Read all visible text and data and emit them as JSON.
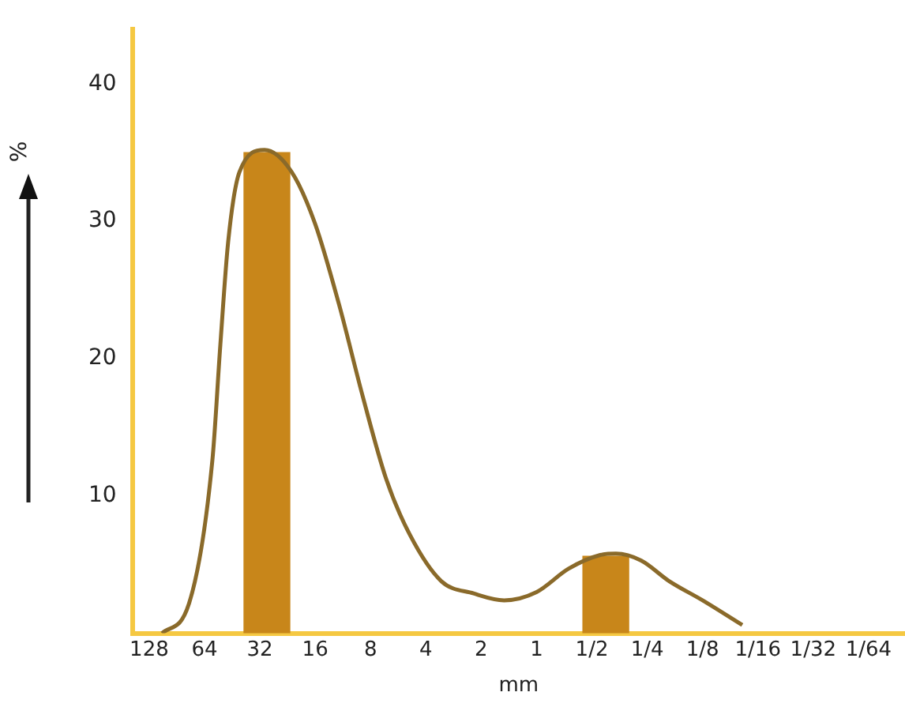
{
  "chart_data": {
    "type": "line",
    "ylabel": "%",
    "xlabel": "mm",
    "log": "x",
    "xlim": [
      158,
      0.0099
    ],
    "xticks": [
      128,
      64,
      32,
      16,
      8,
      4,
      2,
      1,
      {
        "value": 0.5,
        "label": "1/2"
      },
      {
        "value": 0.25,
        "label": "1/4"
      },
      {
        "value": 0.125,
        "label": "1/8"
      },
      {
        "value": 0.0625,
        "label": "1/16"
      },
      {
        "value": 0.03125,
        "label": "1/32"
      },
      {
        "value": 0.015625,
        "label": "1/64"
      }
    ],
    "ylim": [
      0,
      44
    ],
    "yticks": [
      10,
      20,
      30,
      40
    ],
    "grid": false,
    "legend": false,
    "series": [
      {
        "type": "bar",
        "color": "#c8861a",
        "x": [
          29.3,
          0.42
        ],
        "values": [
          35,
          5.6
        ]
      },
      {
        "color": "#8a6a2a",
        "x": [
          109,
          78,
          58,
          52.5,
          47.6,
          41.3,
          30.2,
          21.5,
          16,
          11.9,
          8.8,
          6.6,
          4.9,
          3.3,
          2.2,
          1.5,
          1.0,
          0.67,
          0.45,
          0.37,
          0.27,
          0.19,
          0.125,
          0.076
        ],
        "values": [
          0,
          2.1,
          12.6,
          21,
          28.5,
          33.6,
          35.2,
          33.6,
          29.8,
          24,
          17.2,
          11.3,
          7.2,
          3.8,
          2.9,
          2.4,
          3.0,
          4.7,
          5.7,
          5.8,
          5.3,
          3.8,
          2.4,
          0.6
        ]
      }
    ]
  }
}
